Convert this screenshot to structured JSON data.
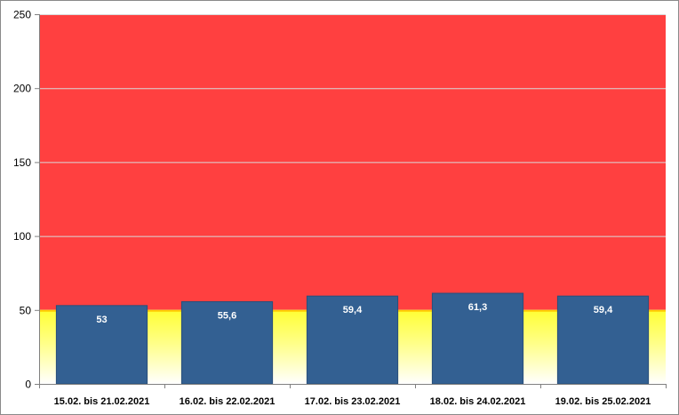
{
  "chart_data": {
    "type": "bar",
    "categories": [
      "15.02. bis 21.02.2021",
      "16.02. bis 22.02.2021",
      "17.02. bis 23.02.2021",
      "18.02. bis 24.02.2021",
      "19.02. bis 25.02.2021"
    ],
    "values": [
      53,
      55.6,
      59.4,
      61.3,
      59.4
    ],
    "value_labels": [
      "53",
      "55,6",
      "59,4",
      "61,3",
      "59,4"
    ],
    "ylim": [
      0,
      250
    ],
    "yticks": [
      0,
      50,
      100,
      150,
      200,
      250
    ],
    "title": "",
    "xlabel": "",
    "ylabel": "",
    "grid": true,
    "legend": "none",
    "background_bands": [
      {
        "from": 0,
        "to": 50,
        "color_bottom": "#ffffff",
        "color_top": "#ffff33"
      },
      {
        "from": 50,
        "to": 250,
        "color": "#ff4040"
      }
    ],
    "threshold_line": {
      "value": 50,
      "color": "#ffcc00"
    }
  },
  "colors": {
    "bar": "#336092",
    "bar_border": "#2a4f7a",
    "red_band": "#ff4040",
    "yellow": "#ffff33",
    "grid": "#d9d9d9",
    "axis": "#808080"
  }
}
